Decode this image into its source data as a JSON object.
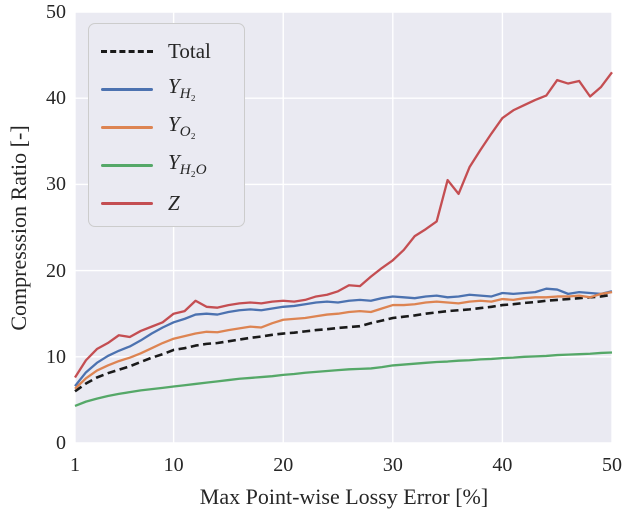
{
  "figure": {
    "background": "#ffffff",
    "plot_background": "#eaeaf2",
    "grid_color": "#ffffff",
    "text_color": "#262626"
  },
  "chart_data": {
    "type": "line",
    "title": "",
    "xlabel": "Max Point-wise Lossy Error [%]",
    "ylabel": "Compresssion Ratio [-]",
    "xlim": [
      1,
      50
    ],
    "ylim": [
      0,
      50
    ],
    "xticks": [
      "1",
      "10",
      "20",
      "30",
      "40",
      "50"
    ],
    "xtick_values": [
      1,
      10,
      20,
      30,
      40,
      50
    ],
    "yticks": [
      "0",
      "10",
      "20",
      "30",
      "40",
      "50"
    ],
    "ytick_values": [
      0,
      10,
      20,
      30,
      40,
      50
    ],
    "grid": true,
    "legend_position": "upper left",
    "x": [
      1,
      2,
      3,
      4,
      5,
      6,
      7,
      8,
      9,
      10,
      11,
      12,
      13,
      14,
      15,
      16,
      17,
      18,
      19,
      20,
      21,
      22,
      23,
      24,
      25,
      26,
      27,
      28,
      29,
      30,
      31,
      32,
      33,
      34,
      35,
      36,
      37,
      38,
      39,
      40,
      41,
      42,
      43,
      44,
      45,
      46,
      47,
      48,
      49,
      50
    ],
    "series": [
      {
        "name": "total",
        "label_html": "Total",
        "color": "#1a1a1a",
        "dash": "8 4.5",
        "line_width": 2.6,
        "values": [
          6.0,
          6.9,
          7.6,
          8.1,
          8.5,
          8.9,
          9.4,
          9.9,
          10.3,
          10.8,
          11.0,
          11.3,
          11.5,
          11.6,
          11.8,
          12.0,
          12.2,
          12.35,
          12.55,
          12.7,
          12.8,
          12.95,
          13.1,
          13.2,
          13.35,
          13.45,
          13.55,
          13.9,
          14.2,
          14.5,
          14.65,
          14.8,
          15.0,
          15.15,
          15.3,
          15.4,
          15.5,
          15.65,
          15.8,
          16.0,
          16.1,
          16.25,
          16.35,
          16.5,
          16.6,
          16.7,
          16.8,
          16.9,
          17.0,
          17.2
        ]
      },
      {
        "name": "Y_H2",
        "label_html": "<i>Y</i><sub><i>H</i>₂</sub>",
        "color": "#4c72b0",
        "dash": "",
        "line_width": 2.3,
        "values": [
          6.6,
          8.2,
          9.3,
          10.1,
          10.7,
          11.2,
          11.9,
          12.7,
          13.4,
          14.0,
          14.4,
          14.9,
          15.0,
          14.9,
          15.2,
          15.4,
          15.5,
          15.4,
          15.6,
          15.8,
          15.9,
          16.1,
          16.3,
          16.4,
          16.3,
          16.5,
          16.6,
          16.5,
          16.8,
          17.0,
          16.9,
          16.8,
          17.0,
          17.1,
          16.9,
          17.0,
          17.2,
          17.1,
          17.0,
          17.4,
          17.3,
          17.4,
          17.5,
          17.9,
          17.8,
          17.3,
          17.5,
          17.4,
          17.3,
          17.6
        ]
      },
      {
        "name": "Y_O2",
        "label_html": "<i>Y</i><sub><i>O</i>₂</sub>",
        "color": "#dd8452",
        "dash": "",
        "line_width": 2.3,
        "values": [
          6.3,
          7.5,
          8.4,
          9.0,
          9.5,
          9.9,
          10.4,
          11.0,
          11.6,
          12.1,
          12.4,
          12.7,
          12.9,
          12.85,
          13.1,
          13.3,
          13.5,
          13.4,
          13.9,
          14.3,
          14.4,
          14.5,
          14.7,
          14.9,
          15.0,
          15.2,
          15.3,
          15.2,
          15.6,
          16.0,
          16.0,
          16.1,
          16.3,
          16.4,
          16.3,
          16.2,
          16.4,
          16.5,
          16.4,
          16.7,
          16.6,
          16.8,
          16.9,
          16.9,
          17.0,
          17.0,
          17.1,
          16.9,
          17.3,
          17.5
        ]
      },
      {
        "name": "Y_H2O",
        "label_html": "<i>Y</i><sub><i>H</i>₂<i>O</i></sub>",
        "color": "#55a868",
        "dash": "",
        "line_width": 2.3,
        "values": [
          4.3,
          4.8,
          5.15,
          5.45,
          5.7,
          5.9,
          6.1,
          6.25,
          6.4,
          6.55,
          6.7,
          6.85,
          7.0,
          7.15,
          7.3,
          7.45,
          7.55,
          7.65,
          7.75,
          7.9,
          8.0,
          8.15,
          8.25,
          8.35,
          8.45,
          8.55,
          8.6,
          8.65,
          8.8,
          9.0,
          9.1,
          9.2,
          9.3,
          9.4,
          9.45,
          9.55,
          9.6,
          9.7,
          9.75,
          9.85,
          9.9,
          10.0,
          10.05,
          10.1,
          10.2,
          10.25,
          10.3,
          10.35,
          10.45,
          10.5
        ]
      },
      {
        "name": "Z",
        "label_html": "<i>Z</i>",
        "color": "#c44e52",
        "dash": "",
        "line_width": 2.3,
        "values": [
          7.6,
          9.6,
          10.9,
          11.6,
          12.5,
          12.3,
          13.0,
          13.5,
          14.0,
          15.0,
          15.3,
          16.5,
          15.8,
          15.7,
          16.0,
          16.2,
          16.3,
          16.2,
          16.4,
          16.5,
          16.4,
          16.6,
          17.0,
          17.2,
          17.6,
          18.3,
          18.2,
          19.3,
          20.3,
          21.2,
          22.4,
          24.0,
          24.8,
          25.7,
          30.5,
          28.9,
          32.0,
          34.0,
          35.9,
          37.7,
          38.6,
          39.2,
          39.8,
          40.3,
          42.1,
          41.7,
          42.0,
          40.2,
          41.3,
          43.0
        ]
      }
    ]
  }
}
